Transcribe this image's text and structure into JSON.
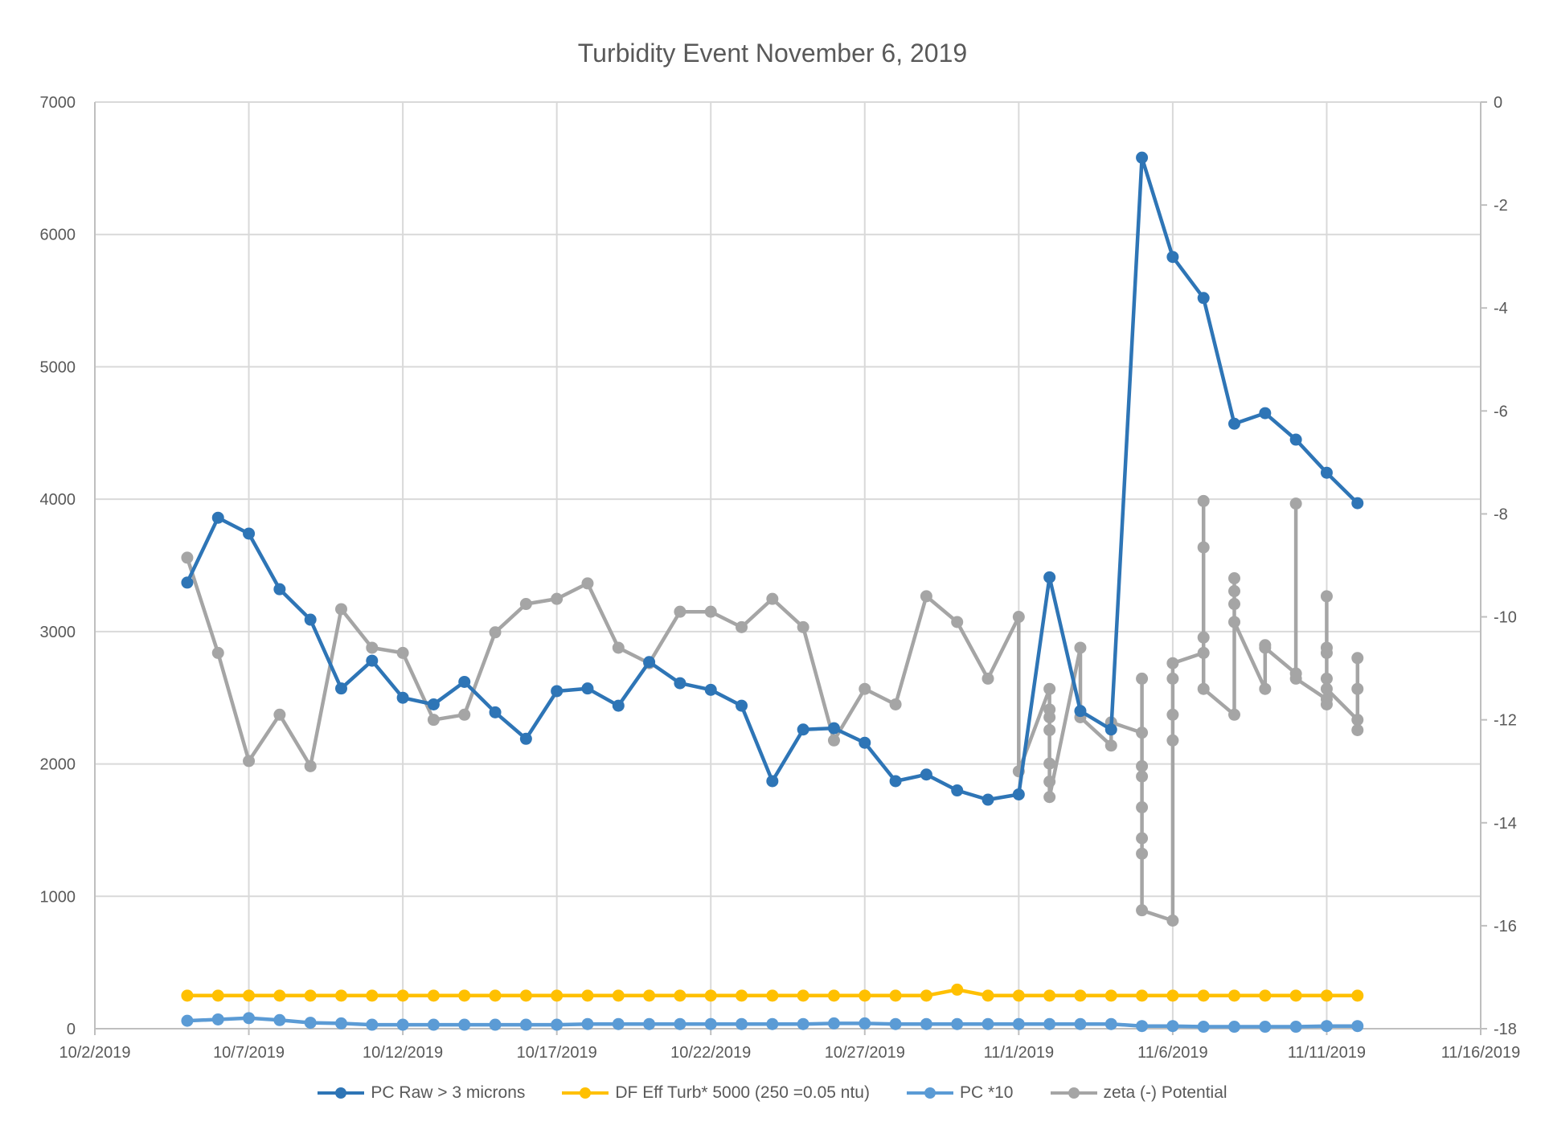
{
  "chart_data": {
    "type": "line",
    "title": "Turbidity Event November 6, 2019",
    "x_axis": {
      "tick_labels": [
        "10/2/2019",
        "10/7/2019",
        "10/12/2019",
        "10/17/2019",
        "10/22/2019",
        "10/27/2019",
        "11/1/2019",
        "11/6/2019",
        "11/11/2019",
        "11/16/2019"
      ],
      "range_days": [
        0,
        45
      ],
      "day0": "10/2/2019"
    },
    "y_axis_left": {
      "min": 0,
      "max": 7000,
      "tick_labels": [
        "0",
        "1000",
        "2000",
        "3000",
        "4000",
        "5000",
        "6000",
        "7000"
      ]
    },
    "y_axis_right": {
      "min": -18,
      "max": 0,
      "tick_labels": [
        "-18",
        "-16",
        "-14",
        "-12",
        "-10",
        "-8",
        "-6",
        "-4",
        "-2",
        "0"
      ]
    },
    "grid": true,
    "legend_position": "bottom",
    "colors": {
      "pc_raw": "#2E75B6",
      "df_eff": "#FFC000",
      "pc10": "#5B9BD5",
      "zeta": "#A5A5A5",
      "grid": "#D9D9D9",
      "axis": "#BFBFBF"
    },
    "series": [
      {
        "name": "PC Raw > 3 microns",
        "key": "pc_raw",
        "axis": "left",
        "x": [
          3,
          4,
          5,
          6,
          7,
          8,
          9,
          10,
          11,
          12,
          13,
          14,
          15,
          16,
          17,
          18,
          19,
          20,
          21,
          22,
          23,
          24,
          25,
          26,
          27,
          28,
          29,
          30,
          31,
          32,
          33,
          34,
          35,
          36,
          37,
          38,
          39,
          40,
          41,
          42,
          43
        ],
        "values": [
          3370,
          3860,
          3740,
          3320,
          3090,
          2570,
          2780,
          2500,
          2450,
          2620,
          2390,
          2190,
          2550,
          2570,
          2440,
          2770,
          2610,
          2560,
          2440,
          1870,
          2260,
          2270,
          2160,
          1870,
          1920,
          1800,
          1730,
          1770,
          3410,
          2400,
          2260,
          6580,
          5830,
          5520,
          4570,
          4650,
          4450,
          4200,
          3970,
          null,
          null
        ]
      },
      {
        "name": "DF Eff Turb* 5000 (250 =0.05 ntu)",
        "key": "df_eff",
        "axis": "left",
        "x": [
          3,
          4,
          5,
          6,
          7,
          8,
          9,
          10,
          11,
          12,
          13,
          14,
          15,
          16,
          17,
          18,
          19,
          20,
          21,
          22,
          23,
          24,
          25,
          26,
          27,
          28,
          29,
          30,
          31,
          32,
          33,
          34,
          35,
          36,
          37,
          38,
          39,
          40,
          41
        ],
        "values": [
          250,
          250,
          250,
          250,
          250,
          250,
          250,
          250,
          250,
          250,
          250,
          250,
          250,
          250,
          250,
          250,
          250,
          250,
          250,
          250,
          250,
          250,
          250,
          250,
          250,
          295,
          250,
          250,
          250,
          250,
          250,
          250,
          250,
          250,
          250,
          250,
          250,
          250,
          250
        ]
      },
      {
        "name": "PC *10",
        "key": "pc10",
        "axis": "left",
        "x": [
          3,
          4,
          5,
          6,
          7,
          8,
          9,
          10,
          11,
          12,
          13,
          14,
          15,
          16,
          17,
          18,
          19,
          20,
          21,
          22,
          23,
          24,
          25,
          26,
          27,
          28,
          29,
          30,
          31,
          32,
          33,
          34,
          35,
          36,
          37,
          38,
          39,
          40,
          41
        ],
        "values": [
          60,
          70,
          80,
          65,
          45,
          40,
          30,
          30,
          30,
          30,
          30,
          30,
          30,
          35,
          35,
          35,
          35,
          35,
          35,
          35,
          35,
          40,
          40,
          35,
          35,
          35,
          35,
          35,
          35,
          35,
          35,
          20,
          20,
          15,
          15,
          15,
          15,
          20,
          20
        ]
      },
      {
        "name": "zeta (-) Potential",
        "key": "zeta",
        "axis": "right",
        "x": [
          3,
          4,
          5,
          6,
          7,
          8,
          9,
          10,
          11,
          12,
          13,
          14,
          15,
          16,
          17,
          18,
          19,
          20,
          21,
          22,
          23,
          24,
          25,
          26,
          27,
          28,
          29,
          30,
          30,
          31,
          31,
          31,
          31,
          31,
          31,
          31,
          32,
          32,
          33,
          33,
          34,
          34,
          34,
          34,
          34,
          34,
          34,
          34,
          35,
          35,
          35,
          35,
          35,
          36,
          36,
          36,
          36,
          36,
          37,
          37,
          37,
          37,
          37,
          38,
          38,
          38,
          39,
          39,
          39,
          40,
          40,
          40,
          40,
          40,
          40,
          40,
          41,
          41,
          41,
          41
        ],
        "values": [
          -8.85,
          -10.7,
          -12.8,
          -11.9,
          -12.9,
          -9.85,
          -10.6,
          -10.7,
          -12.0,
          -11.9,
          -10.3,
          -9.75,
          -9.65,
          -9.35,
          -10.6,
          -10.9,
          -9.9,
          -9.9,
          -10.2,
          -9.65,
          -10.2,
          -12.4,
          -11.4,
          -11.7,
          -9.6,
          -10.1,
          -11.2,
          -10.0,
          -13.0,
          -11.4,
          -11.8,
          -11.95,
          -12.2,
          -12.85,
          -13.2,
          -13.5,
          -10.6,
          -11.95,
          -12.5,
          -12.05,
          -12.25,
          -11.2,
          -12.9,
          -13.1,
          -13.7,
          -14.3,
          -14.6,
          -15.7,
          -15.9,
          -12.4,
          -11.2,
          -11.9,
          -10.9,
          -10.7,
          -7.75,
          -8.65,
          -10.4,
          -11.4,
          -11.9,
          -9.25,
          -9.5,
          -9.75,
          -10.1,
          -11.4,
          -10.55,
          -10.6,
          -11.1,
          -7.8,
          -11.2,
          -11.6,
          -11.7,
          -9.6,
          -10.6,
          -10.7,
          -11.2,
          -11.4,
          -12.0,
          -12.2,
          -10.8,
          -11.4
        ]
      }
    ]
  }
}
